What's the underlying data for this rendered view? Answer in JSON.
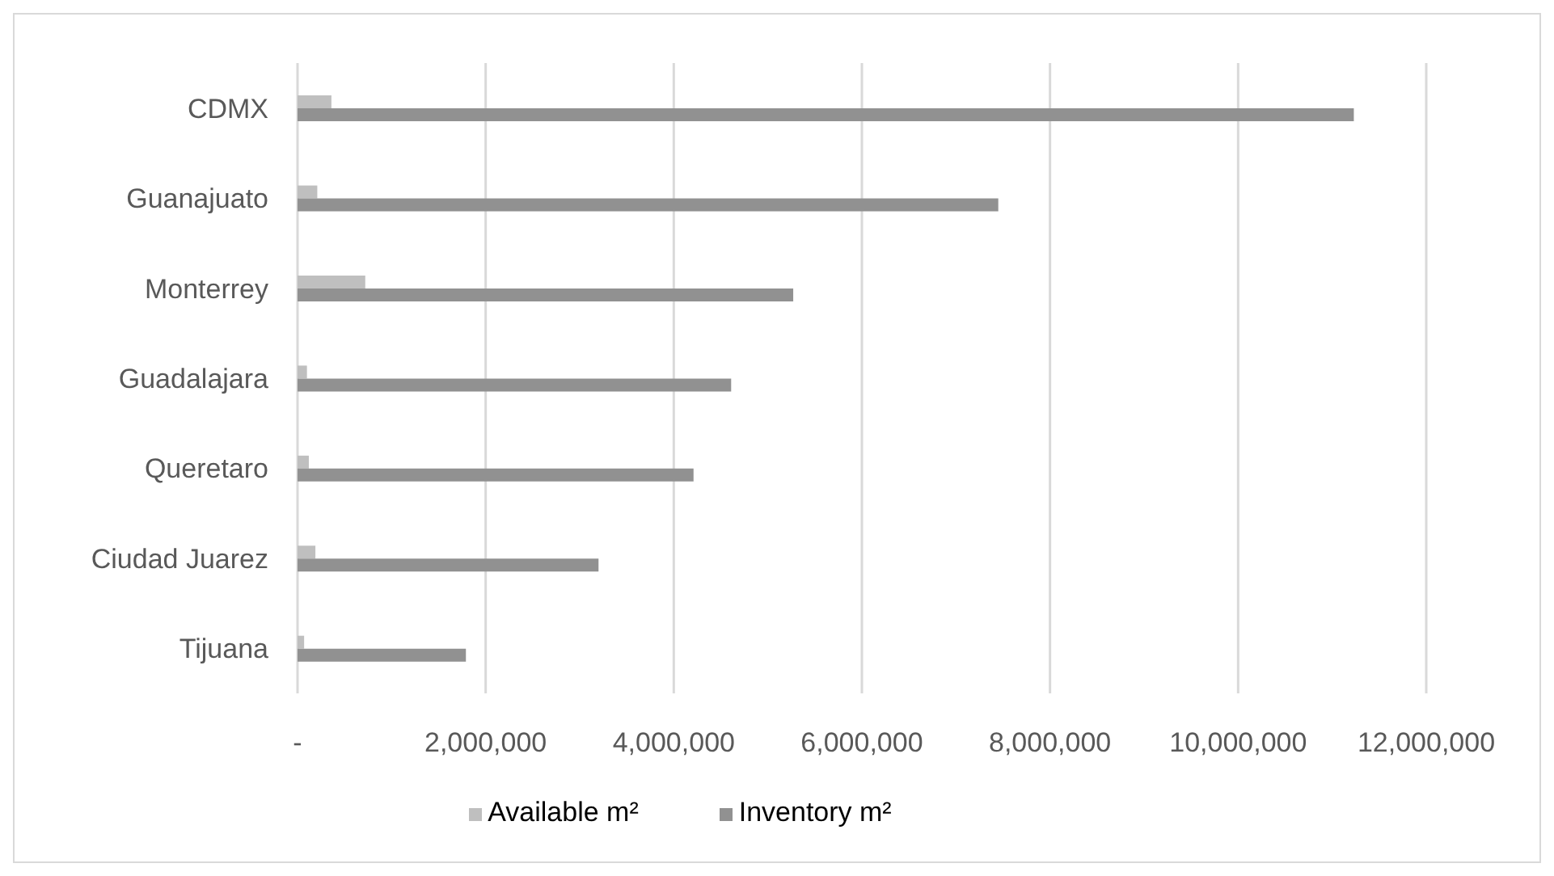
{
  "chart_data": {
    "type": "bar",
    "orientation": "horizontal",
    "categories": [
      "CDMX",
      "Guanajuato",
      "Monterrey",
      "Guadalajara",
      "Queretaro",
      "Ciudad Juarez",
      "Tijuana"
    ],
    "series": [
      {
        "name": "Available m²",
        "color": "#bfbfbf",
        "values": [
          360000,
          210000,
          720000,
          100000,
          120000,
          190000,
          70000
        ]
      },
      {
        "name": "Inventory m²",
        "color": "#919191",
        "values": [
          11230000,
          7450000,
          5270000,
          4610000,
          4210000,
          3200000,
          1790000
        ]
      }
    ],
    "xlim": [
      0,
      12000000
    ],
    "xticks": [
      {
        "value": 0,
        "label": "-"
      },
      {
        "value": 2000000,
        "label": "2,000,000"
      },
      {
        "value": 4000000,
        "label": "4,000,000"
      },
      {
        "value": 6000000,
        "label": "6,000,000"
      },
      {
        "value": 8000000,
        "label": "8,000,000"
      },
      {
        "value": 10000000,
        "label": "10,000,000"
      },
      {
        "value": 12000000,
        "label": "12,000,000"
      }
    ],
    "grid": "x",
    "legend": "bottom"
  }
}
